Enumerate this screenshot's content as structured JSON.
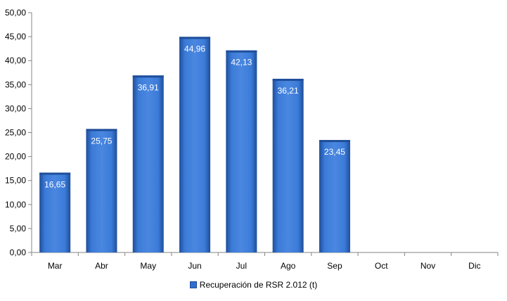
{
  "chart_data": {
    "type": "bar",
    "categories": [
      "Mar",
      "Abr",
      "May",
      "Jun",
      "Jul",
      "Ago",
      "Sep",
      "Oct",
      "Nov",
      "Dic"
    ],
    "series": [
      {
        "name": "Recuperación de RSR 2.012 (t)",
        "values": [
          16.65,
          25.75,
          36.91,
          44.96,
          42.13,
          36.21,
          23.45,
          null,
          null,
          null
        ],
        "value_labels": [
          "16,65",
          "25,75",
          "36,91",
          "44,96",
          "42,13",
          "36,21",
          "23,45",
          "",
          "",
          ""
        ]
      }
    ],
    "ylim": [
      0,
      50
    ],
    "y_ticks": [
      0,
      5,
      10,
      15,
      20,
      25,
      30,
      35,
      40,
      45,
      50
    ],
    "y_tick_labels": [
      "0,00",
      "5,00",
      "10,00",
      "15,00",
      "20,00",
      "25,00",
      "30,00",
      "35,00",
      "40,00",
      "45,00",
      "50,00"
    ],
    "grid": false,
    "legend_position": "bottom",
    "colors": {
      "bar": "#2f6fcf",
      "bar_dark": "#1f4e9a",
      "bar_light": "#5a95e6"
    }
  },
  "legend": {
    "label": "Recuperación de RSR 2.012 (t)"
  }
}
